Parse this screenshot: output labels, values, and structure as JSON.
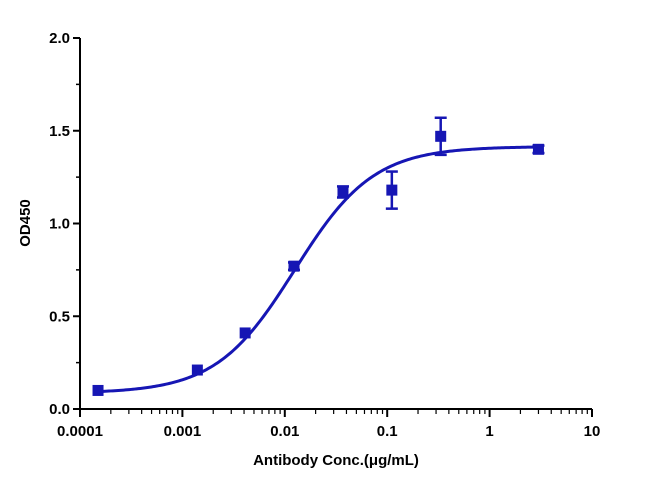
{
  "chart_data": {
    "type": "scatter",
    "title": "",
    "xlabel": "Antibody Conc.(μg/mL)",
    "ylabel": "OD450",
    "x_scale": "log",
    "xlim": [
      0.0001,
      10
    ],
    "ylim": [
      0,
      2.0
    ],
    "x_ticks": [
      {
        "value": 0.0001,
        "label": "0.0001"
      },
      {
        "value": 0.001,
        "label": "0.001"
      },
      {
        "value": 0.01,
        "label": "0.01"
      },
      {
        "value": 0.1,
        "label": "0.1"
      },
      {
        "value": 1,
        "label": "1"
      },
      {
        "value": 10,
        "label": "10"
      }
    ],
    "y_ticks": [
      {
        "value": 0,
        "label": "0.0"
      },
      {
        "value": 0.5,
        "label": "0.5"
      },
      {
        "value": 1.0,
        "label": "1.0"
      },
      {
        "value": 1.5,
        "label": "1.5"
      },
      {
        "value": 2.0,
        "label": "2.0"
      }
    ],
    "grid": false,
    "legend": "none",
    "series": [
      {
        "color": "#1616b4",
        "marker": "square",
        "points": [
          {
            "x": 0.00015,
            "y": 0.1,
            "err": 0.01
          },
          {
            "x": 0.0014,
            "y": 0.21,
            "err": 0.01
          },
          {
            "x": 0.0041,
            "y": 0.41,
            "err": 0.015
          },
          {
            "x": 0.0123,
            "y": 0.77,
            "err": 0.02
          },
          {
            "x": 0.037,
            "y": 1.17,
            "err": 0.03
          },
          {
            "x": 0.111,
            "y": 1.18,
            "err": 0.1
          },
          {
            "x": 0.333,
            "y": 1.47,
            "err": 0.1
          },
          {
            "x": 3.0,
            "y": 1.4,
            "err": 0.02
          }
        ],
        "fit": {
          "model": "4PL",
          "bottom": 0.085,
          "top": 1.415,
          "ec50": 0.0125,
          "hill": 1.13
        }
      }
    ]
  }
}
